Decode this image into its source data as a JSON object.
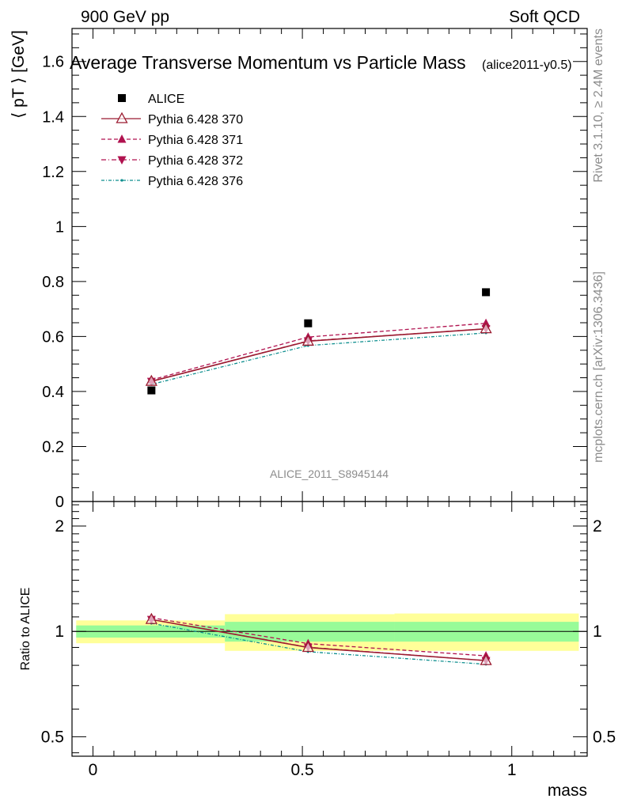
{
  "header": {
    "left": "900 GeV pp",
    "right": "Soft QCD"
  },
  "side": {
    "rivet": "Rivet 3.1.10, ≥ 2.4M events",
    "mcplots": "mcplots.cern.ch [arXiv:1306.3436]"
  },
  "colors": {
    "alice": "#000000",
    "p370": "#9b1b30",
    "p371": "#b0124f",
    "p372": "#b0124f",
    "p376": "#0f8f8f",
    "band_inner": "#98fb98",
    "band_outer": "#ffff99"
  },
  "chart_data": {
    "type": "line",
    "title": "Average Transverse Momentum vs Particle Mass",
    "subtitle": "(alice2011-y0.5)",
    "watermark": "ALICE_2011_S8945144",
    "ylabel_main": "⟨ pT ⟩ [GeV]",
    "ylabel_ratio": "Ratio to ALICE",
    "xlabel": "mass",
    "xlim": [
      -0.05,
      1.18
    ],
    "ylim_main": [
      0,
      1.72
    ],
    "ylim_ratio": [
      0.44,
      2.35
    ],
    "ratio_scale": "log",
    "x_ticks": [
      0,
      0.5,
      1
    ],
    "x_tick_labels": [
      "0",
      "0.5",
      "1"
    ],
    "y_ticks_main": [
      0,
      0.2,
      0.4,
      0.6,
      0.8,
      1,
      1.2,
      1.4,
      1.6
    ],
    "y_tick_labels_main": [
      "0",
      "0.2",
      "0.4",
      "0.6",
      "0.8",
      "1",
      "1.2",
      "1.4",
      "1.6"
    ],
    "y_ticks_ratio": [
      0.5,
      1,
      2
    ],
    "y_tick_labels_ratio": [
      "0.5",
      "1",
      "2"
    ],
    "legend_position": "top-left",
    "x": [
      0.1396,
      0.5137,
      0.9383
    ],
    "data": {
      "name": "ALICE",
      "values": [
        0.404,
        0.648,
        0.761
      ]
    },
    "bands": [
      {
        "xlo": -0.04,
        "xhi": 0.315,
        "inner": [
          0.96,
          1.04
        ],
        "outer": [
          0.925,
          1.075
        ]
      },
      {
        "xlo": 0.315,
        "xhi": 0.72,
        "inner": [
          0.935,
          1.065
        ],
        "outer": [
          0.88,
          1.12
        ]
      },
      {
        "xlo": 0.72,
        "xhi": 1.16,
        "inner": [
          0.935,
          1.065
        ],
        "outer": [
          0.88,
          1.125
        ]
      }
    ],
    "series": [
      {
        "name": "Pythia 6.428 370",
        "values": [
          0.437,
          0.583,
          0.628
        ]
      },
      {
        "name": "Pythia 6.428 371",
        "values": [
          0.442,
          0.598,
          0.648
        ]
      },
      {
        "name": "Pythia 6.428 372",
        "values": [
          0.437,
          0.584,
          0.628
        ]
      },
      {
        "name": "Pythia 6.428 376",
        "values": [
          0.426,
          0.567,
          0.613
        ]
      }
    ]
  }
}
